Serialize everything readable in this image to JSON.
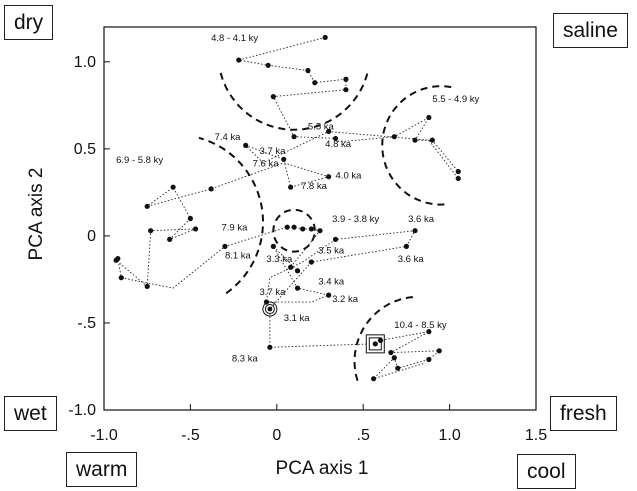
{
  "corners": {
    "top_left": "dry",
    "top_right": "saline",
    "mid_left": "wet",
    "mid_right": "fresh",
    "bottom_left": "warm",
    "bottom_right": "cool"
  },
  "chart_data": {
    "type": "scatter",
    "title": "",
    "xlabel": "PCA axis 1",
    "ylabel": "PCA axis 2",
    "xlim": [
      -1.0,
      1.5
    ],
    "ylim": [
      -1.0,
      1.2
    ],
    "xticks": [
      -1.0,
      -0.5,
      0,
      0.5,
      1.0,
      1.5
    ],
    "xtick_labels": [
      "-1.0",
      "-.5",
      "0",
      ".5",
      "1.0",
      "1.5"
    ],
    "yticks": [
      -1.0,
      -0.5,
      0,
      0.5,
      1.0
    ],
    "ytick_labels": [
      "-1.0",
      "-.5",
      "0",
      "0.5",
      "1.0"
    ],
    "grid": false,
    "trajectory": [
      [
        0.28,
        1.14
      ],
      [
        -0.22,
        1.01
      ],
      [
        -0.05,
        0.98
      ],
      [
        0.18,
        0.95
      ],
      [
        0.22,
        0.88
      ],
      [
        0.4,
        0.9
      ],
      [
        0.4,
        0.84
      ],
      [
        -0.02,
        0.8
      ],
      [
        0.1,
        0.57
      ],
      [
        0.34,
        0.56
      ],
      [
        0.36,
        0.54
      ],
      [
        0.68,
        0.57
      ],
      [
        0.88,
        0.68
      ],
      [
        0.8,
        0.55
      ],
      [
        0.9,
        0.55
      ],
      [
        1.05,
        0.37
      ],
      [
        1.05,
        0.33
      ],
      [
        0.88,
        0.55
      ],
      [
        0.3,
        0.6
      ],
      [
        -0.08,
        0.42
      ],
      [
        -0.18,
        0.52
      ],
      [
        0.04,
        0.44
      ],
      [
        0.08,
        0.28
      ],
      [
        0.3,
        0.34
      ],
      [
        0.04,
        0.42
      ],
      [
        -0.38,
        0.27
      ],
      [
        -0.75,
        0.17
      ],
      [
        -0.6,
        0.28
      ],
      [
        -0.5,
        0.1
      ],
      [
        -0.62,
        -0.02
      ],
      [
        -0.47,
        0.04
      ],
      [
        -0.73,
        0.03
      ],
      [
        -0.75,
        -0.29
      ],
      [
        -0.93,
        -0.14
      ],
      [
        -0.92,
        -0.13
      ],
      [
        -0.9,
        -0.24
      ],
      [
        -0.6,
        -0.3
      ],
      [
        -0.3,
        -0.06
      ],
      [
        0.06,
        0.05
      ],
      [
        0.1,
        0.05
      ],
      [
        0.15,
        0.04
      ],
      [
        0.2,
        0.04
      ],
      [
        0.25,
        0.03
      ],
      [
        0.08,
        -0.18
      ],
      [
        0.12,
        -0.2
      ],
      [
        -0.02,
        -0.06
      ],
      [
        0.12,
        -0.3
      ],
      [
        0.3,
        -0.34
      ],
      [
        0.2,
        -0.38
      ],
      [
        -0.06,
        -0.38
      ],
      [
        -0.04,
        -0.24
      ],
      [
        0.15,
        -0.15
      ],
      [
        0.34,
        -0.02
      ],
      [
        0.8,
        0.03
      ],
      [
        0.75,
        -0.06
      ],
      [
        0.2,
        -0.15
      ],
      [
        -0.04,
        -0.42
      ],
      [
        -0.04,
        -0.64
      ],
      [
        0.57,
        -0.62
      ],
      [
        0.6,
        -0.6
      ],
      [
        0.88,
        -0.55
      ],
      [
        0.66,
        -0.67
      ],
      [
        0.94,
        -0.66
      ],
      [
        0.88,
        -0.71
      ],
      [
        0.7,
        -0.76
      ],
      [
        0.68,
        -0.7
      ],
      [
        0.56,
        -0.82
      ],
      [
        0.86,
        -0.73
      ]
    ],
    "points": [
      [
        0.28,
        1.14
      ],
      [
        -0.22,
        1.01
      ],
      [
        -0.05,
        0.98
      ],
      [
        0.18,
        0.95
      ],
      [
        0.22,
        0.88
      ],
      [
        0.4,
        0.9
      ],
      [
        0.4,
        0.84
      ],
      [
        -0.02,
        0.8
      ],
      [
        0.1,
        0.57
      ],
      [
        0.34,
        0.56
      ],
      [
        0.68,
        0.57
      ],
      [
        0.88,
        0.68
      ],
      [
        0.8,
        0.55
      ],
      [
        0.9,
        0.55
      ],
      [
        1.05,
        0.37
      ],
      [
        1.05,
        0.33
      ],
      [
        0.3,
        0.6
      ],
      [
        -0.18,
        0.52
      ],
      [
        0.04,
        0.44
      ],
      [
        0.08,
        0.28
      ],
      [
        0.3,
        0.34
      ],
      [
        -0.38,
        0.27
      ],
      [
        -0.75,
        0.17
      ],
      [
        -0.6,
        0.28
      ],
      [
        -0.5,
        0.1
      ],
      [
        -0.62,
        -0.02
      ],
      [
        -0.47,
        0.04
      ],
      [
        -0.73,
        0.03
      ],
      [
        -0.75,
        -0.29
      ],
      [
        -0.93,
        -0.14
      ],
      [
        -0.92,
        -0.13
      ],
      [
        -0.9,
        -0.24
      ],
      [
        -0.3,
        -0.06
      ],
      [
        0.06,
        0.05
      ],
      [
        0.1,
        0.05
      ],
      [
        0.15,
        0.04
      ],
      [
        0.2,
        0.04
      ],
      [
        0.25,
        0.03
      ],
      [
        0.08,
        -0.18
      ],
      [
        0.12,
        -0.2
      ],
      [
        -0.02,
        -0.06
      ],
      [
        0.12,
        -0.3
      ],
      [
        0.3,
        -0.34
      ],
      [
        -0.06,
        -0.38
      ],
      [
        0.34,
        -0.02
      ],
      [
        0.8,
        0.03
      ],
      [
        0.75,
        -0.06
      ],
      [
        0.2,
        -0.15
      ],
      [
        -0.04,
        -0.64
      ],
      [
        0.6,
        -0.6
      ],
      [
        0.88,
        -0.55
      ],
      [
        0.66,
        -0.67
      ],
      [
        0.94,
        -0.66
      ],
      [
        0.88,
        -0.71
      ],
      [
        0.7,
        -0.76
      ],
      [
        0.68,
        -0.7
      ],
      [
        0.56,
        -0.82
      ]
    ],
    "annotations": [
      {
        "text": "4.8 - 4.1 ky",
        "x": -0.38,
        "y": 1.12
      },
      {
        "text": "5.5 - 4.9 ky",
        "x": 0.9,
        "y": 0.77
      },
      {
        "text": "5.5 ka",
        "x": 0.18,
        "y": 0.61
      },
      {
        "text": "4.8 ka",
        "x": 0.28,
        "y": 0.51
      },
      {
        "text": "7.4 ka",
        "x": -0.36,
        "y": 0.55
      },
      {
        "text": "3.7 ka",
        "x": -0.1,
        "y": 0.47
      },
      {
        "text": "7.6 ka",
        "x": -0.14,
        "y": 0.4
      },
      {
        "text": "6.9 - 5.8 ky",
        "x": -0.93,
        "y": 0.42
      },
      {
        "text": "7.8 ka",
        "x": 0.14,
        "y": 0.27
      },
      {
        "text": "4.0 ka",
        "x": 0.34,
        "y": 0.33
      },
      {
        "text": "3.9 - 3.8 ky",
        "x": 0.32,
        "y": 0.08
      },
      {
        "text": "3.6 ka",
        "x": 0.76,
        "y": 0.08
      },
      {
        "text": "7.9 ka",
        "x": -0.32,
        "y": 0.03
      },
      {
        "text": "3.5 ka",
        "x": 0.24,
        "y": -0.1
      },
      {
        "text": "3.6 ka",
        "x": 0.7,
        "y": -0.15
      },
      {
        "text": "8.1 ka",
        "x": -0.3,
        "y": -0.13
      },
      {
        "text": "3.3 ka",
        "x": -0.06,
        "y": -0.15
      },
      {
        "text": "3.4 ka",
        "x": 0.24,
        "y": -0.28
      },
      {
        "text": "3.7 ka",
        "x": -0.1,
        "y": -0.34
      },
      {
        "text": "3.2 ka",
        "x": 0.32,
        "y": -0.38
      },
      {
        "text": "3.1 ka",
        "x": 0.04,
        "y": -0.49
      },
      {
        "text": "10.4 - 8.5 ky",
        "x": 0.68,
        "y": -0.53
      },
      {
        "text": "8.3 ka",
        "x": -0.26,
        "y": -0.72
      }
    ],
    "special_markers": [
      {
        "type": "circled-dot",
        "x": -0.04,
        "y": -0.42
      },
      {
        "type": "boxed-dot",
        "x": 0.57,
        "y": -0.62
      }
    ],
    "dashed_arcs": [
      {
        "cx": 0.1,
        "cy": 1.05,
        "r": 0.44,
        "theta": [
          195,
          345
        ]
      },
      {
        "cx": 0.95,
        "cy": 0.52,
        "r": 0.34,
        "theta": [
          80,
          275
        ]
      },
      {
        "cx": -0.58,
        "cy": 0.08,
        "r": 0.5,
        "theta": [
          -55,
          75
        ]
      },
      {
        "cx": 0.1,
        "cy": 0.03,
        "r": 0.12,
        "theta": [
          0,
          360
        ]
      },
      {
        "cx": 0.82,
        "cy": -0.72,
        "r": 0.37,
        "theta": [
          95,
          200
        ]
      }
    ]
  }
}
